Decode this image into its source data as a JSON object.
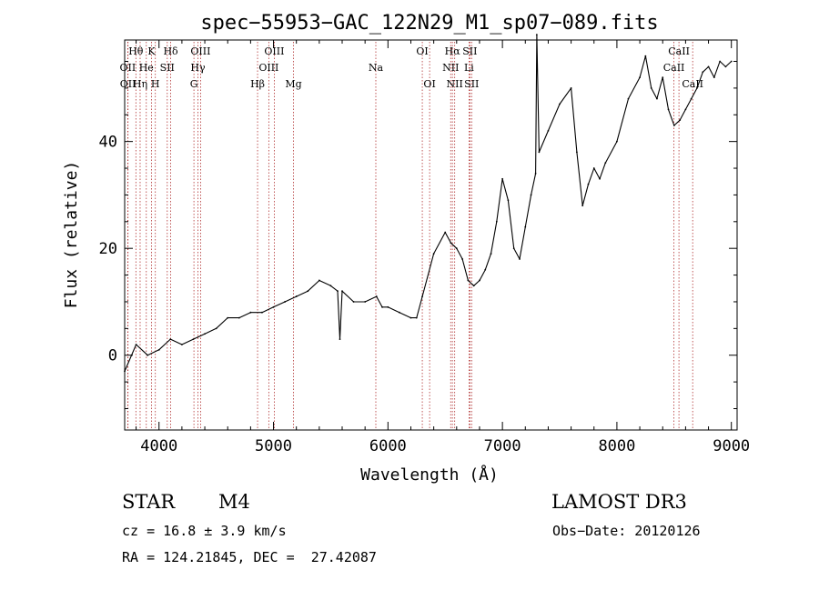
{
  "chart_data": {
    "type": "line",
    "title": "spec−55953−GAC_122N29_M1_sp07−089.fits",
    "xlabel": "Wavelength (Å)",
    "ylabel": "Flux (relative)",
    "xlim": [
      3700,
      9050
    ],
    "ylim": [
      -14,
      59
    ],
    "xticks": [
      4000,
      5000,
      6000,
      7000,
      8000,
      9000
    ],
    "yticks": [
      0,
      20,
      40
    ],
    "series": [
      {
        "name": "flux",
        "x": [
          3700,
          3800,
          3900,
          4000,
          4100,
          4200,
          4300,
          4400,
          4500,
          4600,
          4700,
          4800,
          4900,
          5000,
          5100,
          5200,
          5300,
          5400,
          5500,
          5560,
          5580,
          5600,
          5700,
          5800,
          5900,
          5950,
          6000,
          6100,
          6200,
          6250,
          6300,
          6400,
          6500,
          6550,
          6600,
          6650,
          6700,
          6750,
          6800,
          6850,
          6900,
          6950,
          7000,
          7050,
          7100,
          7150,
          7200,
          7250,
          7290,
          7300,
          7320,
          7400,
          7500,
          7600,
          7650,
          7700,
          7750,
          7800,
          7850,
          7900,
          8000,
          8100,
          8200,
          8250,
          8300,
          8350,
          8400,
          8450,
          8500,
          8550,
          8600,
          8650,
          8700,
          8750,
          8800,
          8850,
          8900,
          8950,
          9000
        ],
        "y": [
          -3,
          2,
          0,
          1,
          3,
          2,
          3,
          4,
          5,
          7,
          7,
          8,
          8,
          9,
          10,
          11,
          12,
          14,
          13,
          12,
          3,
          12,
          10,
          10,
          11,
          9,
          9,
          8,
          7,
          7,
          11,
          19,
          23,
          21,
          20,
          18,
          14,
          13,
          14,
          16,
          19,
          25,
          33,
          29,
          20,
          18,
          24,
          30,
          34,
          60,
          38,
          42,
          47,
          50,
          38,
          28,
          32,
          35,
          33,
          36,
          40,
          48,
          52,
          56,
          50,
          48,
          52,
          46,
          43,
          44,
          46,
          48,
          50,
          53,
          54,
          52,
          55,
          54,
          55
        ]
      }
    ],
    "line_ids": [
      {
        "label": "Hθ",
        "wavelength": 3798,
        "row": 0
      },
      {
        "label": "OII",
        "wavelength": 3727,
        "row": 1
      },
      {
        "label": "OII",
        "wavelength": 3729,
        "row": 2
      },
      {
        "label": "He",
        "wavelength": 3889,
        "row": 1
      },
      {
        "label": "Hη",
        "wavelength": 3835,
        "row": 2
      },
      {
        "label": "K",
        "wavelength": 3934,
        "row": 0
      },
      {
        "label": "H",
        "wavelength": 3968,
        "row": 2
      },
      {
        "label": "SII",
        "wavelength": 4072,
        "row": 1
      },
      {
        "label": "Hδ",
        "wavelength": 4102,
        "row": 0
      },
      {
        "label": "OIII",
        "wavelength": 4363,
        "row": 0
      },
      {
        "label": "Hγ",
        "wavelength": 4340,
        "row": 1
      },
      {
        "label": "G",
        "wavelength": 4305,
        "row": 2
      },
      {
        "label": "Hβ",
        "wavelength": 4861,
        "row": 2
      },
      {
        "label": "OIII",
        "wavelength": 5007,
        "row": 0
      },
      {
        "label": "OIII",
        "wavelength": 4959,
        "row": 1
      },
      {
        "label": "Mg",
        "wavelength": 5175,
        "row": 2
      },
      {
        "label": "Na",
        "wavelength": 5894,
        "row": 1
      },
      {
        "label": "OI",
        "wavelength": 6300,
        "row": 0
      },
      {
        "label": "OI",
        "wavelength": 6364,
        "row": 2
      },
      {
        "label": "Hα",
        "wavelength": 6563,
        "row": 0
      },
      {
        "label": "SII",
        "wavelength": 6716,
        "row": 0
      },
      {
        "label": "NII",
        "wavelength": 6548,
        "row": 1
      },
      {
        "label": "NII",
        "wavelength": 6583,
        "row": 2
      },
      {
        "label": "Li",
        "wavelength": 6708,
        "row": 1
      },
      {
        "label": "SII",
        "wavelength": 6731,
        "row": 2
      },
      {
        "label": "CaII",
        "wavelength": 8542,
        "row": 0
      },
      {
        "label": "CaII",
        "wavelength": 8498,
        "row": 1
      },
      {
        "label": "CaII",
        "wavelength": 8662,
        "row": 2
      }
    ]
  },
  "info": {
    "class": "STAR",
    "subclass": "M4",
    "survey": "LAMOST DR3",
    "cz": "cz = 16.8 ± 3.9 km/s",
    "obs_date": "Obs−Date: 20120126",
    "radec": "RA = 124.21845, DEC =  27.42087"
  }
}
